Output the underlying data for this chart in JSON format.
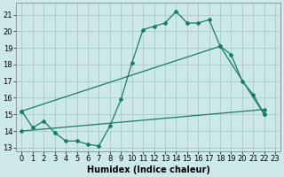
{
  "title": "",
  "xlabel": "Humidex (Indice chaleur)",
  "bg_color": "#cce8e8",
  "grid_color": "#aacfcf",
  "line_color": "#1a7a6a",
  "xlim": [
    -0.5,
    23.5
  ],
  "ylim": [
    12.8,
    21.7
  ],
  "yticks": [
    13,
    14,
    15,
    16,
    17,
    18,
    19,
    20,
    21
  ],
  "xticks": [
    0,
    1,
    2,
    3,
    4,
    5,
    6,
    7,
    8,
    9,
    10,
    11,
    12,
    13,
    14,
    15,
    16,
    17,
    18,
    19,
    20,
    21,
    22,
    23
  ],
  "line1_x": [
    0,
    1,
    2,
    3,
    4,
    5,
    6,
    7,
    8,
    9,
    10,
    11,
    12,
    13,
    14,
    15,
    16,
    17,
    18,
    19,
    20,
    21,
    22
  ],
  "line1_y": [
    15.2,
    14.2,
    14.6,
    13.9,
    13.4,
    13.4,
    13.2,
    13.1,
    14.3,
    15.9,
    18.1,
    20.1,
    20.3,
    20.5,
    21.2,
    20.5,
    20.5,
    20.7,
    19.1,
    18.6,
    17.0,
    16.2,
    15.0
  ],
  "line2_x": [
    0,
    18,
    22
  ],
  "line2_y": [
    15.2,
    19.1,
    15.0
  ],
  "line3_x": [
    0,
    22
  ],
  "line3_y": [
    14.0,
    15.3
  ],
  "xlabel_fontsize": 7,
  "tick_fontsize": 6
}
